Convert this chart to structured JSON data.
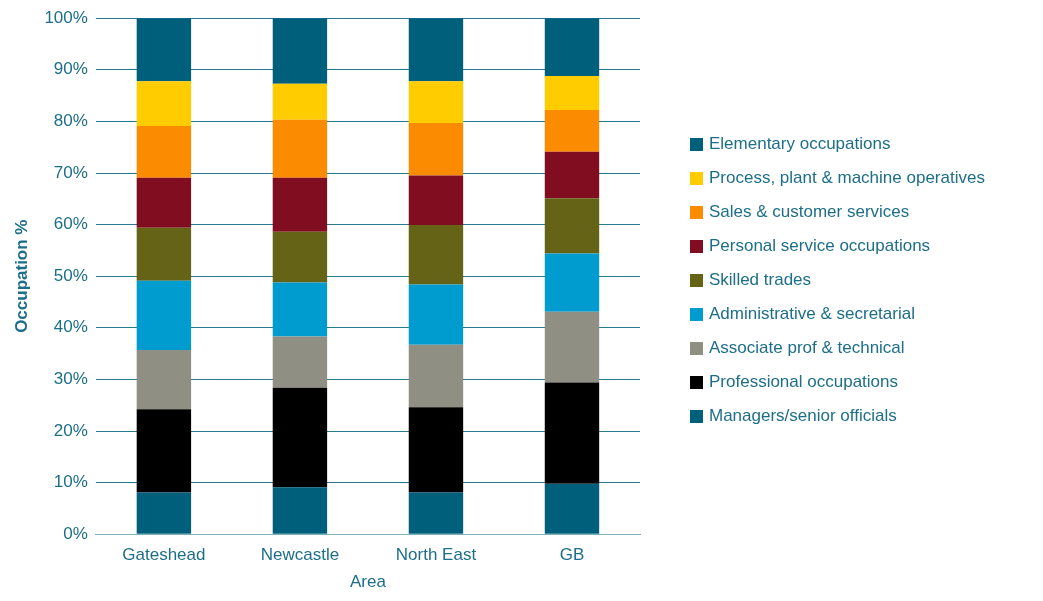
{
  "chart_data": {
    "type": "bar",
    "stacked": true,
    "xlabel": "Area",
    "ylabel": "Occupation %",
    "categories": [
      "Gateshead",
      "Newcastle",
      "North East",
      "GB"
    ],
    "ylim": [
      0,
      100
    ],
    "yticks": [
      {
        "value": 0,
        "label": "0%"
      },
      {
        "value": 10,
        "label": "10%"
      },
      {
        "value": 20,
        "label": "20%"
      },
      {
        "value": 30,
        "label": "30%"
      },
      {
        "value": 40,
        "label": "40%"
      },
      {
        "value": 50,
        "label": "50%"
      },
      {
        "value": 60,
        "label": "60%"
      },
      {
        "value": 70,
        "label": "70%"
      },
      {
        "value": 80,
        "label": "80%"
      },
      {
        "value": 90,
        "label": "90%"
      },
      {
        "value": 100,
        "label": "100%"
      }
    ],
    "grid": "y",
    "legend": "right",
    "series": [
      {
        "name": "Managers/senior officials",
        "color": "#005f7a",
        "values": [
          8.1,
          9.1,
          8.1,
          9.8
        ]
      },
      {
        "name": "Professional occupations",
        "color": "#000000",
        "values": [
          16.1,
          19.3,
          16.5,
          19.6
        ]
      },
      {
        "name": "Associate prof & technical",
        "color": "#908f84",
        "values": [
          11.5,
          9.9,
          12.1,
          13.7
        ]
      },
      {
        "name": "Administrative & secretarial",
        "color": "#009bcf",
        "values": [
          13.4,
          10.5,
          11.7,
          11.3
        ]
      },
      {
        "name": "Skilled trades",
        "color": "#656316",
        "values": [
          10.3,
          9.8,
          11.5,
          10.7
        ]
      },
      {
        "name": "Personal service occupations",
        "color": "#800d20",
        "values": [
          9.7,
          10.5,
          9.6,
          9.0
        ]
      },
      {
        "name": "Sales & customer services",
        "color": "#fb8b00",
        "values": [
          10.0,
          11.2,
          10.2,
          8.1
        ]
      },
      {
        "name": "Process, plant & machine operatives",
        "color": "#ffcc00",
        "values": [
          8.7,
          7.0,
          8.1,
          6.6
        ]
      },
      {
        "name": "Elementary occupations",
        "color": "#005f7a",
        "values": [
          12.2,
          12.7,
          12.2,
          11.2
        ]
      }
    ]
  }
}
